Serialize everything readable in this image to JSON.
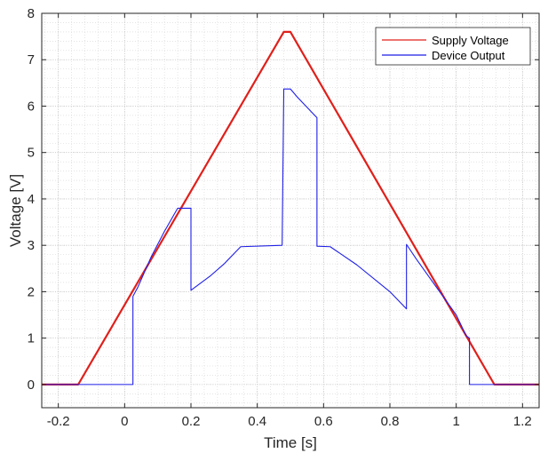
{
  "chart_data": {
    "type": "line",
    "xlabel": "Time [s]",
    "ylabel": "Voltage [V]",
    "xlim": [
      -0.25,
      1.25
    ],
    "ylim": [
      -0.5,
      8
    ],
    "xticks": [
      -0.2,
      0,
      0.2,
      0.4,
      0.6,
      0.8,
      1,
      1.2
    ],
    "xtick_labels": [
      "-0.2",
      "0",
      "0.2",
      "0.4",
      "0.6",
      "0.8",
      "1",
      "1.2"
    ],
    "yticks": [
      0,
      1,
      2,
      3,
      4,
      5,
      6,
      7,
      8
    ],
    "ytick_labels": [
      "0",
      "1",
      "2",
      "3",
      "4",
      "5",
      "6",
      "7",
      "8"
    ],
    "grid": true,
    "minor_grid": true,
    "legend_position": "top-right",
    "series": [
      {
        "name": "Supply Voltage",
        "color": "#e0201b",
        "x": [
          -0.25,
          -0.14,
          0.48,
          0.5,
          1.115,
          1.25
        ],
        "y": [
          0,
          0,
          7.6,
          7.6,
          0,
          0
        ]
      },
      {
        "name": "Device Output",
        "color": "#1f1fe6",
        "x": [
          -0.25,
          0.025,
          0.025,
          0.04,
          0.08,
          0.12,
          0.16,
          0.2,
          0.2,
          0.26,
          0.3,
          0.35,
          0.475,
          0.48,
          0.5,
          0.52,
          0.58,
          0.58,
          0.62,
          0.7,
          0.8,
          0.85,
          0.85,
          0.88,
          0.95,
          1.0,
          1.03,
          1.04,
          1.04,
          1.25
        ],
        "y": [
          0,
          0,
          1.9,
          2.1,
          2.75,
          3.3,
          3.8,
          3.8,
          2.03,
          2.35,
          2.6,
          2.97,
          3.0,
          6.37,
          6.37,
          6.2,
          5.75,
          2.98,
          2.97,
          2.58,
          2.0,
          1.63,
          3.02,
          2.7,
          2.0,
          1.5,
          1.05,
          1.0,
          0,
          0
        ]
      }
    ]
  }
}
